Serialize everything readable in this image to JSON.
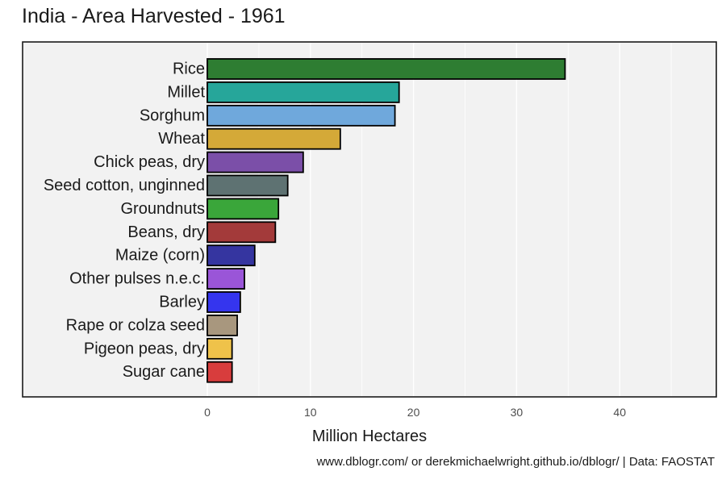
{
  "title": "India - Area Harvested - 1961",
  "caption": "www.dblogr.com/ or derekmichaelwright.github.io/dblogr/ | Data: FAOSTAT",
  "chart_data": {
    "type": "bar",
    "orientation": "horizontal",
    "title": "India - Area Harvested - 1961",
    "xlabel": "Million Hectares",
    "ylabel": "",
    "xlim": [
      -20,
      49
    ],
    "xticks": [
      0,
      10,
      20,
      30,
      40
    ],
    "grid": true,
    "legend": "none",
    "categories": [
      "Rice",
      "Millet",
      "Sorghum",
      "Wheat",
      "Chick peas, dry",
      "Seed cotton, unginned",
      "Groundnuts",
      "Beans, dry",
      "Maize (corn)",
      "Other pulses n.e.c.",
      "Barley",
      "Rape or colza seed",
      "Pigeon peas, dry",
      "Sugar cane"
    ],
    "values": [
      34.7,
      18.6,
      18.2,
      12.9,
      9.3,
      7.8,
      6.9,
      6.6,
      4.6,
      3.6,
      3.2,
      2.9,
      2.4,
      2.4
    ],
    "colors": [
      "#2e7d32",
      "#26a69a",
      "#6fa8dc",
      "#d4a938",
      "#7b4fa8",
      "#5e7272",
      "#3aa63a",
      "#a33a3a",
      "#3535a0",
      "#9a55d8",
      "#3535ee",
      "#a8977e",
      "#efc24a",
      "#d83d3d"
    ]
  }
}
